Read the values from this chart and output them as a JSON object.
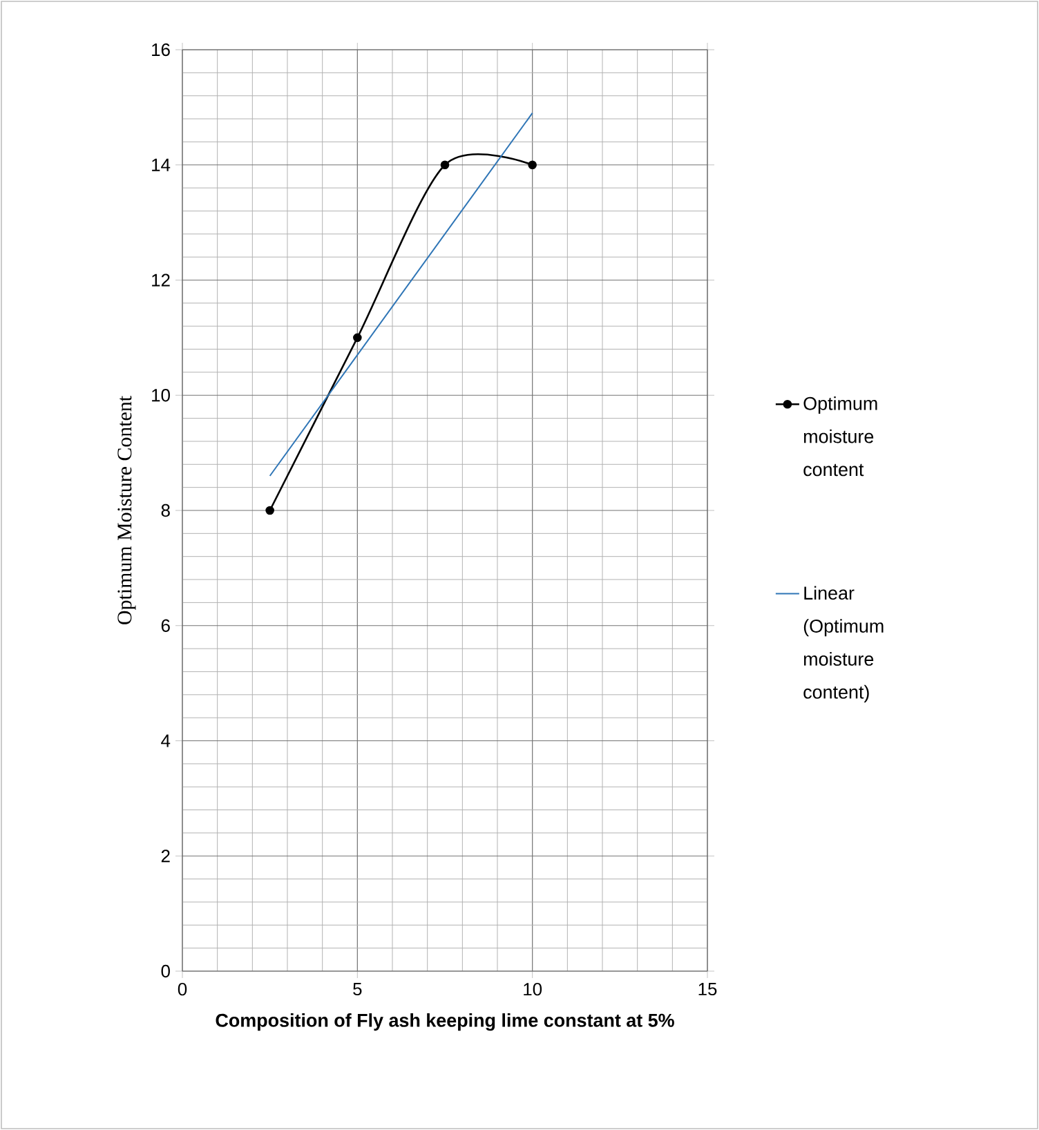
{
  "chart_data": {
    "type": "line",
    "xlabel": "Composition of Fly ash keeping lime constant at 5%",
    "ylabel": "Optimum Moisture Content",
    "x": [
      2.5,
      5,
      7.5,
      10
    ],
    "series": [
      {
        "name": "Optimum moisture content",
        "color": "#000000",
        "marker": "circle",
        "values": [
          8,
          11,
          14,
          14
        ]
      },
      {
        "name": "Linear (Optimum moisture content)",
        "color": "#2e75b6",
        "marker": "none",
        "x": [
          2.5,
          10
        ],
        "values": [
          8.6,
          14.9
        ]
      }
    ],
    "xlim": [
      0,
      15
    ],
    "xticks": [
      0,
      5,
      10,
      15
    ],
    "ylim": [
      0,
      16
    ],
    "yticks": [
      0,
      2,
      4,
      6,
      8,
      10,
      12,
      14,
      16
    ],
    "grid": true,
    "legend": "right"
  }
}
